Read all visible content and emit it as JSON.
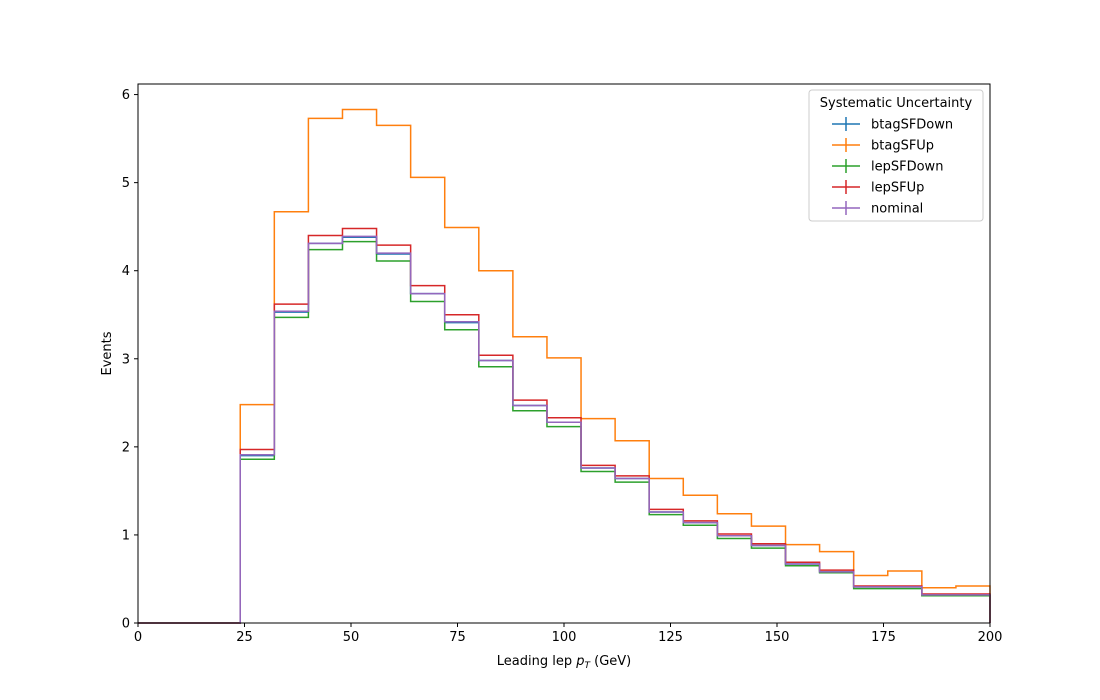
{
  "chart_data": {
    "type": "line",
    "step": "post",
    "xlabel_main": "Leading lep ",
    "xlabel_sym": "p",
    "xlabel_sub": "T",
    "xlabel_tail": " (GeV)",
    "ylabel": "Events",
    "xlim": [
      0,
      200
    ],
    "ylim": [
      0,
      6.12
    ],
    "xticks": [
      0,
      25,
      50,
      75,
      100,
      125,
      150,
      175,
      200
    ],
    "yticks": [
      0,
      1,
      2,
      3,
      4,
      5,
      6
    ],
    "bin_edges": [
      0,
      8,
      16,
      24,
      32,
      40,
      48,
      56,
      64,
      72,
      80,
      88,
      96,
      104,
      112,
      120,
      128,
      136,
      144,
      152,
      160,
      168,
      176,
      184,
      192,
      200
    ],
    "legend": {
      "title": "Systematic Uncertainty",
      "loc": "upper-right"
    },
    "series": [
      {
        "name": "btagSFDown",
        "color": "#1f77b4",
        "values": [
          0,
          0,
          0,
          1.9,
          3.53,
          4.31,
          4.38,
          4.19,
          3.74,
          3.41,
          2.98,
          2.47,
          2.28,
          1.76,
          1.64,
          1.26,
          1.14,
          0.99,
          0.88,
          0.67,
          0.58,
          0.41,
          0.41,
          0.32,
          0.32
        ]
      },
      {
        "name": "btagSFUp",
        "color": "#ff7f0e",
        "values": [
          0,
          0,
          0,
          2.48,
          4.67,
          5.73,
          5.83,
          5.65,
          5.06,
          4.49,
          4.0,
          3.25,
          3.01,
          2.32,
          2.07,
          1.64,
          1.45,
          1.24,
          1.1,
          0.89,
          0.81,
          0.54,
          0.59,
          0.4,
          0.42
        ]
      },
      {
        "name": "lepSFDown",
        "color": "#2ca02c",
        "values": [
          0,
          0,
          0,
          1.86,
          3.47,
          4.24,
          4.33,
          4.11,
          3.65,
          3.33,
          2.91,
          2.41,
          2.23,
          1.72,
          1.6,
          1.23,
          1.11,
          0.96,
          0.85,
          0.65,
          0.57,
          0.39,
          0.39,
          0.31,
          0.31
        ]
      },
      {
        "name": "lepSFUp",
        "color": "#d62728",
        "values": [
          0,
          0,
          0,
          1.97,
          3.62,
          4.4,
          4.48,
          4.29,
          3.83,
          3.5,
          3.04,
          2.53,
          2.33,
          1.79,
          1.67,
          1.29,
          1.16,
          1.01,
          0.9,
          0.69,
          0.6,
          0.42,
          0.42,
          0.33,
          0.33
        ]
      },
      {
        "name": "nominal",
        "color": "#9467bd",
        "values": [
          0,
          0,
          0,
          1.91,
          3.54,
          4.31,
          4.39,
          4.2,
          3.74,
          3.42,
          2.98,
          2.47,
          2.28,
          1.76,
          1.64,
          1.26,
          1.14,
          0.99,
          0.88,
          0.67,
          0.58,
          0.41,
          0.41,
          0.32,
          0.32
        ]
      }
    ]
  }
}
